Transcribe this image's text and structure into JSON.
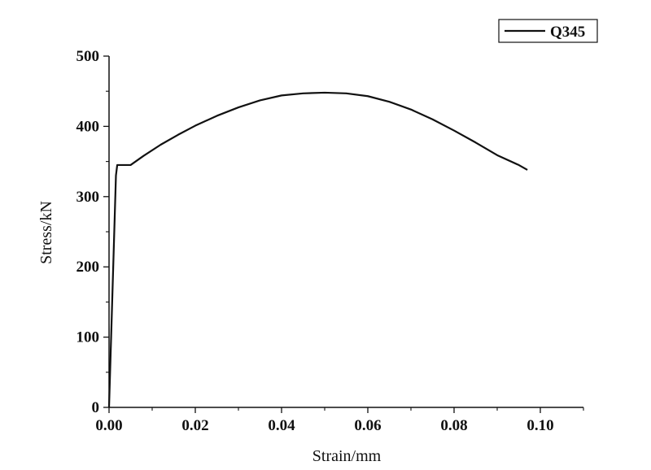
{
  "chart_data": {
    "type": "line",
    "xlabel": "Strain/mm",
    "ylabel": "Stress/kN",
    "xlim": [
      0,
      0.11
    ],
    "ylim": [
      0,
      500
    ],
    "xticks": [
      0.0,
      0.02,
      0.04,
      0.06,
      0.08,
      0.1
    ],
    "xtick_labels": [
      "0.00",
      "0.02",
      "0.04",
      "0.06",
      "0.08",
      "0.10"
    ],
    "yticks": [
      0,
      100,
      200,
      300,
      400,
      500
    ],
    "ytick_labels": [
      "0",
      "100",
      "200",
      "300",
      "400",
      "500"
    ],
    "legend_position": "top-right",
    "grid": false,
    "series": [
      {
        "name": "Q345",
        "color": "#111111",
        "x": [
          0,
          0.0016,
          0.0019,
          0.0025,
          0.0035,
          0.005,
          0.008,
          0.012,
          0.016,
          0.02,
          0.025,
          0.03,
          0.035,
          0.04,
          0.045,
          0.05,
          0.055,
          0.06,
          0.065,
          0.07,
          0.075,
          0.08,
          0.085,
          0.09,
          0.095,
          0.097
        ],
        "y": [
          0,
          330,
          345,
          345,
          345,
          345,
          358,
          374,
          388,
          401,
          415,
          427,
          437,
          444,
          447,
          448,
          447,
          443,
          435,
          424,
          410,
          394,
          377,
          359,
          345,
          338
        ]
      }
    ]
  }
}
